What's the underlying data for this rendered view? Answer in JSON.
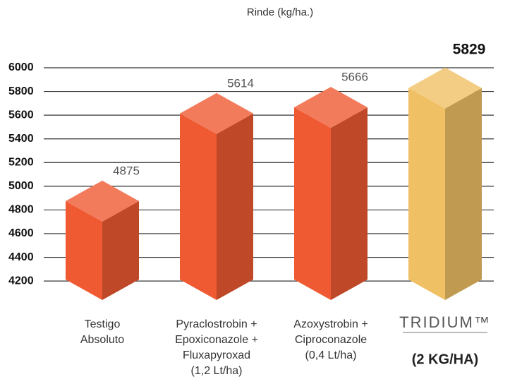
{
  "chart_data": {
    "type": "bar3d",
    "title": "Rinde (kg/ha.)",
    "categories": [
      [
        "Testigo",
        "Absoluto"
      ],
      [
        "Pyraclostrobin +",
        "Epoxiconazole +",
        "Fluxapyroxad",
        "(1,2 Lt/ha)"
      ],
      [
        "Azoxystrobin +",
        "Ciproconazole",
        "(0,4 Lt/ha)"
      ],
      [
        "TRIDIUM™",
        "(2 KG/HA)"
      ]
    ],
    "values": [
      4875,
      5614,
      5666,
      5829
    ],
    "colors": [
      "#ef5a32",
      "#ef5a32",
      "#ef5a32",
      "#f0c064"
    ],
    "ylim": [
      4040,
      6000
    ],
    "yticks": [
      4200,
      4400,
      4600,
      4800,
      5000,
      5200,
      5400,
      5600,
      5800,
      6000
    ],
    "grid": true
  }
}
